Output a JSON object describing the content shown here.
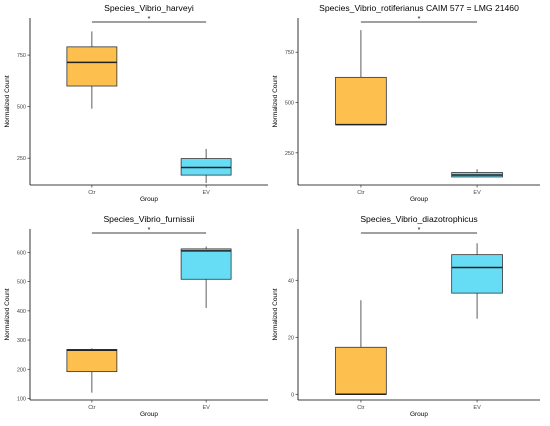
{
  "chart_data": [
    {
      "type": "box",
      "title": "Species_Vibrio_harveyi",
      "xlabel": "Group",
      "ylabel": "Normalized Count",
      "categories": [
        "Ctr",
        "EV"
      ],
      "ylim": [
        120,
        930
      ],
      "yticks": [
        250,
        500,
        750
      ],
      "boxes": [
        {
          "group": "Ctr",
          "min": 490,
          "q1": 600,
          "median": 715,
          "q3": 790,
          "max": 865,
          "color": "#FDBF4E"
        },
        {
          "group": "EV",
          "min": 130,
          "q1": 168,
          "median": 205,
          "q3": 248,
          "max": 295,
          "color": "#66DDF5"
        }
      ],
      "significance": "*"
    },
    {
      "type": "box",
      "title": "Species_Vibrio_rotiferianus CAIM 577 = LMG 21460",
      "xlabel": "Group",
      "ylabel": "Normalized Count",
      "categories": [
        "Ctr",
        "EV"
      ],
      "ylim": [
        90,
        920
      ],
      "yticks": [
        250,
        500,
        750
      ],
      "boxes": [
        {
          "group": "Ctr",
          "min": 390,
          "q1": 390,
          "median": 390,
          "q3": 625,
          "max": 860,
          "color": "#FDBF4E"
        },
        {
          "group": "EV",
          "min": 128,
          "q1": 130,
          "median": 140,
          "q3": 152,
          "max": 168,
          "color": "#66DDF5"
        }
      ],
      "significance": "*"
    },
    {
      "type": "box",
      "title": "Species_Vibrio_furnissii",
      "xlabel": "Group",
      "ylabel": "Normalized Count",
      "categories": [
        "Ctr",
        "EV"
      ],
      "ylim": [
        95,
        680
      ],
      "yticks": [
        100,
        200,
        300,
        400,
        500,
        600
      ],
      "boxes": [
        {
          "group": "Ctr",
          "min": 120,
          "q1": 192,
          "median": 265,
          "q3": 268,
          "max": 272,
          "color": "#FDBF4E"
        },
        {
          "group": "EV",
          "min": 410,
          "q1": 508,
          "median": 605,
          "q3": 612,
          "max": 620,
          "color": "#66DDF5"
        }
      ],
      "significance": "*"
    },
    {
      "type": "box",
      "title": "Species_Vibrio_diazotrophicus",
      "xlabel": "Group",
      "ylabel": "Normalized Count",
      "categories": [
        "Ctr",
        "EV"
      ],
      "ylim": [
        -2,
        58
      ],
      "yticks": [
        0,
        20,
        40
      ],
      "boxes": [
        {
          "group": "Ctr",
          "min": 0,
          "q1": 0,
          "median": 0,
          "q3": 16.5,
          "max": 33,
          "color": "#FDBF4E"
        },
        {
          "group": "EV",
          "min": 26.5,
          "q1": 35.5,
          "median": 44.5,
          "q3": 49,
          "max": 53,
          "color": "#66DDF5"
        }
      ],
      "significance": "*"
    }
  ]
}
